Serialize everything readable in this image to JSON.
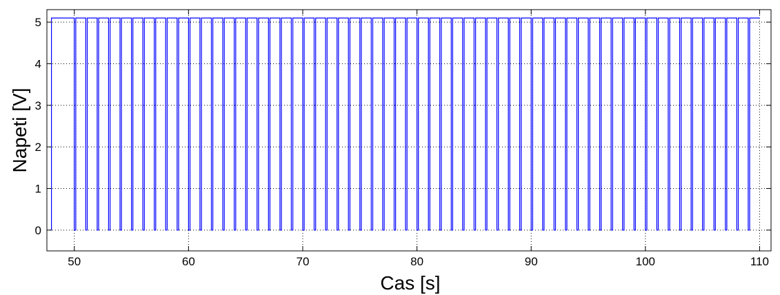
{
  "chart_data": {
    "type": "line",
    "title": "",
    "xlabel": "Cas [s]",
    "ylabel": "Napeti [V]",
    "xlim": [
      47.6,
      111
    ],
    "ylim": [
      -0.5,
      5.3
    ],
    "xticks": [
      50,
      60,
      70,
      80,
      90,
      100,
      110
    ],
    "yticks": [
      0,
      1,
      2,
      3,
      4,
      5
    ],
    "grid": true,
    "line_color": "#0000ff",
    "signal": {
      "description_type": "square_wave",
      "high_level": 5.1,
      "low_level": 0,
      "start_time": 47.9,
      "end_time": 110,
      "period_s": 1.0,
      "pulse_count": 61
    },
    "series": [
      {
        "values": {
          "x": [
            47.9,
            48.0,
            48.0,
            50.1,
            50.1,
            50.9,
            50.9,
            51.1,
            51.1,
            51.9,
            51.9,
            52.1,
            52.1,
            52.9,
            52.9,
            53.1,
            53.1,
            53.9,
            53.9,
            54.1,
            54.1,
            54.9,
            54.9,
            55.1,
            55.1,
            55.9,
            55.9,
            56.1,
            56.1,
            56.9,
            56.9,
            57.1,
            57.1,
            57.9,
            57.9,
            58.1,
            58.1,
            58.9,
            58.9,
            59.1,
            59.1,
            59.9,
            59.9,
            60.1,
            60.1,
            110.0
          ],
          "y": [
            0,
            0,
            5.1,
            5.1,
            0,
            0,
            5.1,
            5.1,
            0,
            0,
            5.1,
            5.1,
            0,
            0,
            5.1,
            5.1,
            0,
            0,
            5.1,
            5.1,
            0,
            0,
            5.1,
            5.1,
            0,
            0,
            5.1,
            5.1,
            0,
            0,
            5.1,
            5.1,
            0,
            0,
            5.1,
            5.1,
            0,
            0,
            5.1,
            5.1,
            0,
            0,
            5.1,
            5.1,
            0,
            5.1
          ]
        }
      }
    ]
  }
}
